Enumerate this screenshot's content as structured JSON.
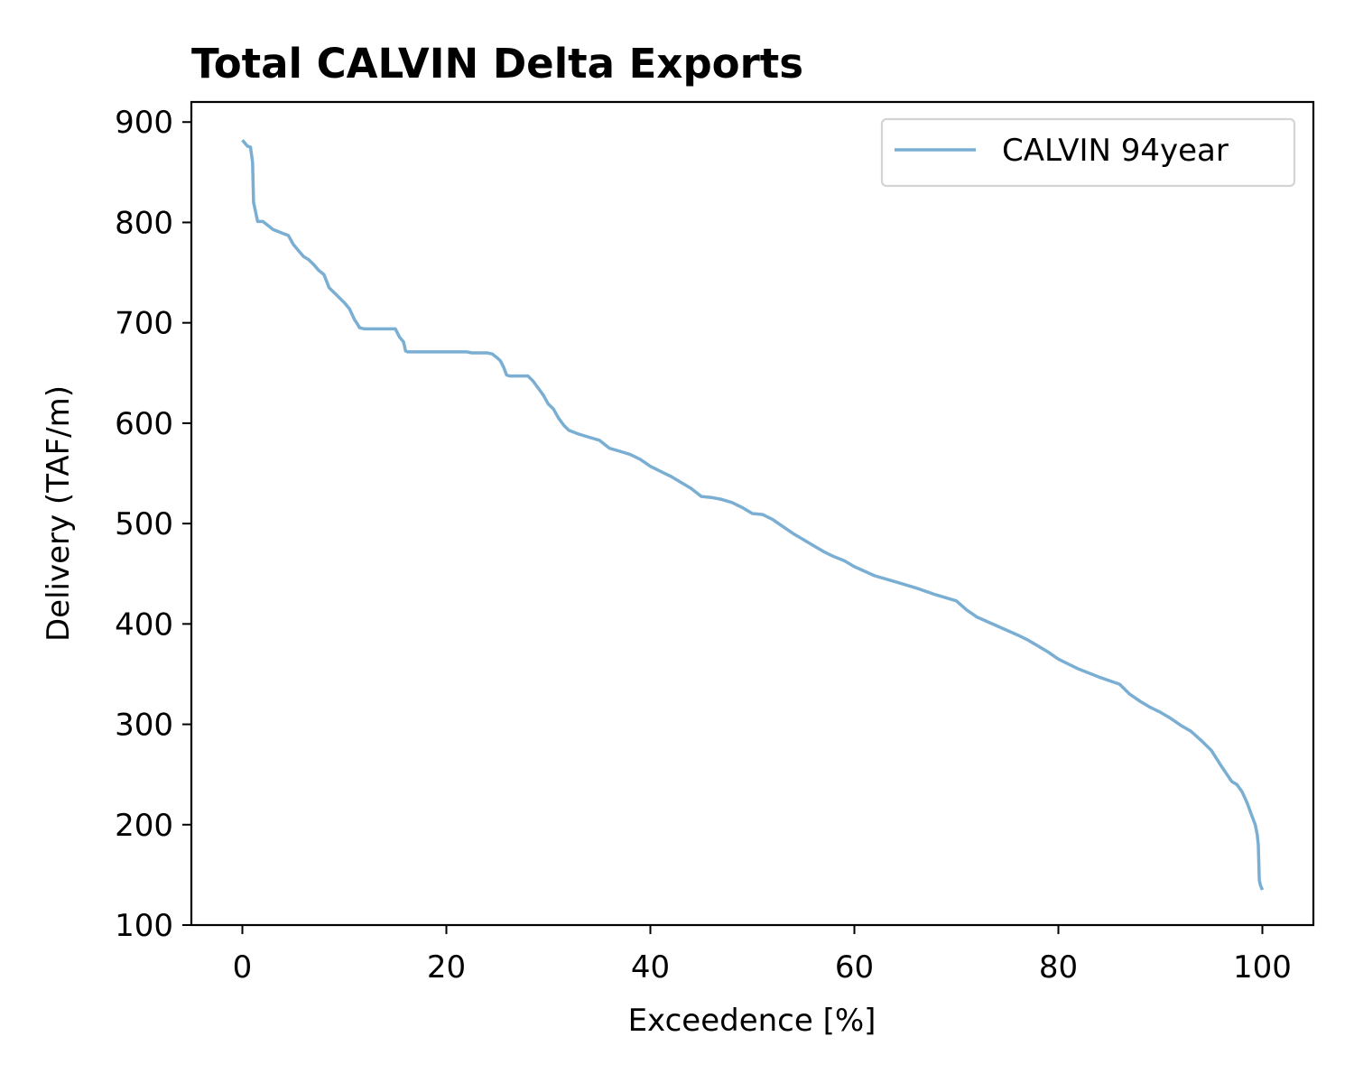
{
  "chart_data": {
    "type": "line",
    "title": "Total CALVIN Delta Exports",
    "xlabel": "Exceedence [%]",
    "ylabel": "Delivery (TAF/m)",
    "xlim": [
      -5,
      105
    ],
    "ylim": [
      100,
      920
    ],
    "xticks": [
      0,
      20,
      40,
      60,
      80,
      100
    ],
    "yticks": [
      100,
      200,
      300,
      400,
      500,
      600,
      700,
      800,
      900
    ],
    "grid": false,
    "legend": {
      "position": "top-right"
    },
    "colors": {
      "series": "#7aaed2"
    },
    "series": [
      {
        "name": "CALVIN 94year",
        "x": [
          0,
          0.5,
          0.8,
          1.0,
          1.1,
          1.2,
          1.5,
          2.0,
          2.5,
          3.0,
          3.5,
          4.0,
          4.5,
          5.0,
          5.5,
          6.0,
          6.5,
          7.0,
          7.5,
          8.0,
          8.5,
          9.0,
          9.5,
          10.0,
          10.5,
          11.0,
          11.2,
          11.5,
          12.0,
          13.0,
          14.0,
          15.0,
          15.4,
          15.8,
          16.0,
          16.2,
          17.0,
          18.0,
          20.0,
          22.0,
          22.5,
          24.0,
          24.5,
          25.0,
          25.3,
          25.6,
          25.9,
          26.2,
          27.0,
          28.0,
          28.5,
          29.0,
          29.5,
          30.0,
          30.5,
          31.0,
          31.5,
          32.0,
          33.0,
          34.0,
          35.0,
          35.5,
          36.0,
          37.0,
          38.0,
          39.0,
          40.0,
          41.0,
          42.0,
          43.0,
          44.0,
          45.0,
          46.0,
          47.0,
          48.0,
          49.0,
          50.0,
          51.0,
          52.0,
          53.0,
          54.0,
          55.0,
          56.0,
          57.0,
          58.0,
          59.0,
          60.0,
          62.0,
          64.0,
          66.0,
          68.0,
          70.0,
          71.0,
          72.0,
          74.0,
          76.0,
          77.0,
          78.0,
          79.0,
          80.0,
          82.0,
          84.0,
          86.0,
          87.0,
          88.0,
          89.0,
          90.0,
          91.0,
          92.0,
          93.0,
          94.0,
          95.0,
          96.0,
          97.0,
          97.5,
          98.0,
          98.5,
          99.0,
          99.3,
          99.5,
          99.6,
          99.7,
          99.8,
          100.0
        ],
        "y": [
          882,
          876,
          875,
          860,
          820,
          815,
          801,
          801,
          797,
          793,
          791,
          789,
          787,
          778,
          772,
          766,
          763,
          758,
          752,
          748,
          735,
          730,
          725,
          720,
          714,
          703,
          700,
          695,
          694,
          694,
          694,
          694,
          686,
          681,
          672,
          671,
          671,
          671,
          671,
          671,
          670,
          670,
          669,
          665,
          662,
          656,
          648,
          647,
          647,
          647,
          642,
          635,
          628,
          619,
          614,
          605,
          598,
          593,
          589,
          586,
          583,
          579,
          575,
          572,
          569,
          564,
          557,
          552,
          547,
          541,
          535,
          527,
          526,
          524,
          521,
          516,
          510,
          509,
          504,
          497,
          490,
          484,
          478,
          472,
          467,
          463,
          457,
          448,
          442,
          436,
          429,
          423,
          414,
          407,
          398,
          389,
          384,
          378,
          372,
          365,
          355,
          347,
          340,
          330,
          323,
          317,
          312,
          306,
          299,
          293,
          284,
          274,
          258,
          243,
          240,
          233,
          222,
          208,
          200,
          190,
          180,
          145,
          140,
          135
        ]
      }
    ]
  }
}
